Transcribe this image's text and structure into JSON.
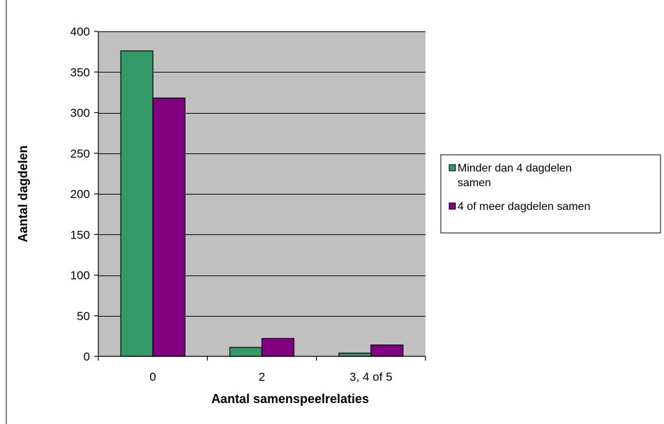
{
  "chart_data": {
    "type": "bar",
    "title": "",
    "xlabel": "Aantal samenspeelrelaties",
    "ylabel": "Aantal dagdelen",
    "categories": [
      "0",
      "2",
      "3, 4 of 5"
    ],
    "series": [
      {
        "name": "Minder dan 4 dagdelen samen",
        "values": [
          376,
          11,
          4
        ],
        "color": "#339966"
      },
      {
        "name": "4 of meer dagdelen samen",
        "values": [
          318,
          22,
          14
        ],
        "color": "#800080"
      }
    ],
    "ylim": [
      0,
      400
    ],
    "yticks": [
      0,
      50,
      100,
      150,
      200,
      250,
      300,
      350,
      400
    ],
    "grid": true,
    "plot_background": "#c0c0c0",
    "legend_position": "right"
  },
  "legend": {
    "lines": [
      [
        "Minder dan 4 dagdelen",
        "samen"
      ],
      [
        "4 of meer dagdelen samen"
      ]
    ]
  }
}
